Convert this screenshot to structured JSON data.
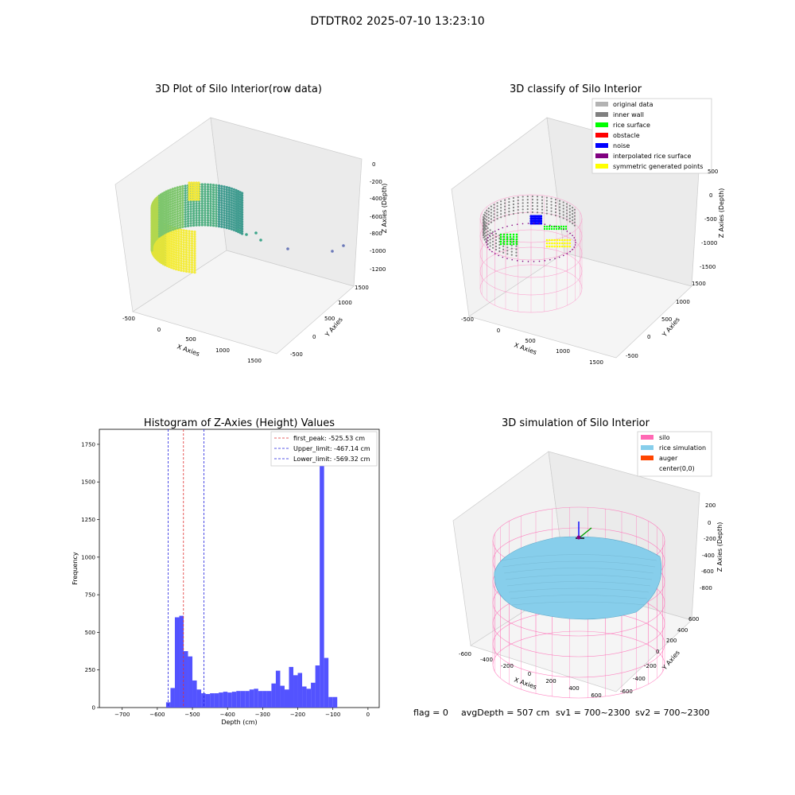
{
  "figure": {
    "suptitle": "DTDTR02 2025-07-10 13:23:10",
    "footer": {
      "flag": "flag = 0",
      "avg_depth": "avgDepth = 507 cm",
      "sv1": "sv1 = 700~2300",
      "sv2": "sv2 = 700~2300"
    }
  },
  "colors": {
    "hist_bar": "#4a4aff",
    "first_peak": "#e03030",
    "limits": "#2020e0",
    "silo": "#ff69b4",
    "rice_simulation": "#87ceeb",
    "auger": "#ff4500",
    "original_data": "#b3b3b3",
    "inner_wall": "#808080",
    "rice_surface": "#00ff00",
    "obstacle": "#ff0000",
    "noise": "#0000ff",
    "interpolated_rice_surface": "#800080",
    "symmetric_generated_points": "#ffff00"
  },
  "chart_data": [
    {
      "type": "scatter",
      "title": "3D Plot of Silo Interior(row data)",
      "xlabel": "X Axies",
      "ylabel": "Y Axies",
      "zlabel": "Z Axies (Depth)",
      "x_ticks": [
        "-500",
        "0",
        "500",
        "1000",
        "1500"
      ],
      "y_ticks": [
        "-500",
        "0",
        "500",
        "1000",
        "1500"
      ],
      "z_ticks": [
        "0",
        "-200",
        "-400",
        "-600",
        "-800",
        "-1000",
        "-1200"
      ]
    },
    {
      "type": "scatter",
      "title": "3D classify of Silo Interior",
      "xlabel": "X Axies",
      "ylabel": "Y Axies",
      "zlabel": "Z Axies (Depth)",
      "x_ticks": [
        "-500",
        "0",
        "500",
        "1000",
        "1500"
      ],
      "y_ticks": [
        "-500",
        "0",
        "500",
        "1000",
        "1500"
      ],
      "z_ticks": [
        "500",
        "0",
        "-500",
        "-1000",
        "-1500"
      ],
      "legend": [
        "original data",
        "inner wall",
        "rice surface",
        "obstacle",
        "noise",
        "interpolated rice surface",
        "symmetric generated points"
      ],
      "legend_position": "upper-right"
    },
    {
      "type": "bar",
      "title": "Histogram of Z-Axies (Height) Values",
      "xlabel": "Depth (cm)",
      "ylabel": "Frequency",
      "xlim": [
        -765,
        32
      ],
      "ylim": [
        0,
        1850
      ],
      "x_ticks": [
        -700,
        -600,
        -500,
        -400,
        -300,
        -200,
        -100,
        0
      ],
      "y_ticks": [
        0,
        250,
        500,
        750,
        1000,
        1250,
        1500,
        1750
      ],
      "bin_width": 12.5,
      "bins": [
        [
          -575,
          35
        ],
        [
          -562.5,
          130
        ],
        [
          -550,
          600
        ],
        [
          -537.5,
          610
        ],
        [
          -525,
          375
        ],
        [
          -512.5,
          340
        ],
        [
          -500,
          180
        ],
        [
          -487.5,
          120
        ],
        [
          -475,
          95
        ],
        [
          -462.5,
          90
        ],
        [
          -450,
          95
        ],
        [
          -437.5,
          95
        ],
        [
          -425,
          100
        ],
        [
          -412.5,
          105
        ],
        [
          -400,
          100
        ],
        [
          -387.5,
          105
        ],
        [
          -375,
          110
        ],
        [
          -362.5,
          110
        ],
        [
          -350,
          110
        ],
        [
          -337.5,
          120
        ],
        [
          -325,
          125
        ],
        [
          -312.5,
          110
        ],
        [
          -300,
          110
        ],
        [
          -287.5,
          110
        ],
        [
          -275,
          160
        ],
        [
          -262.5,
          245
        ],
        [
          -250,
          145
        ],
        [
          -237.5,
          120
        ],
        [
          -225,
          270
        ],
        [
          -212.5,
          215
        ],
        [
          -200,
          230
        ],
        [
          -187.5,
          140
        ],
        [
          -175,
          125
        ],
        [
          -162.5,
          165
        ],
        [
          -150,
          280
        ],
        [
          -137.5,
          1760
        ],
        [
          -125,
          330
        ],
        [
          -112.5,
          70
        ],
        [
          -100,
          70
        ]
      ],
      "lines": [
        {
          "label": "first_peak: -525.53 cm",
          "value": -525.53,
          "color": "#e03030"
        },
        {
          "label": "Upper_limit: -467.14 cm",
          "value": -467.14,
          "color": "#2020e0"
        },
        {
          "label": "Lower_limit: -569.32 cm",
          "value": -569.32,
          "color": "#2020e0"
        }
      ],
      "legend_position": "upper-right"
    },
    {
      "type": "scatter",
      "title": "3D simulation of Silo Interior",
      "xlabel": "X Axies",
      "ylabel": "Y Axies",
      "zlabel": "Z Axies (Depth)",
      "x_ticks": [
        "-600",
        "-400",
        "-200",
        "0",
        "200",
        "400",
        "600"
      ],
      "y_ticks": [
        "-600",
        "-400",
        "-200",
        "0",
        "200",
        "400",
        "600"
      ],
      "z_ticks": [
        "200",
        "0",
        "-200",
        "-400",
        "-600",
        "-800"
      ],
      "legend": [
        "silo",
        "rice simulation",
        "auger",
        "center(0,0)"
      ],
      "legend_position": "upper-right"
    }
  ]
}
